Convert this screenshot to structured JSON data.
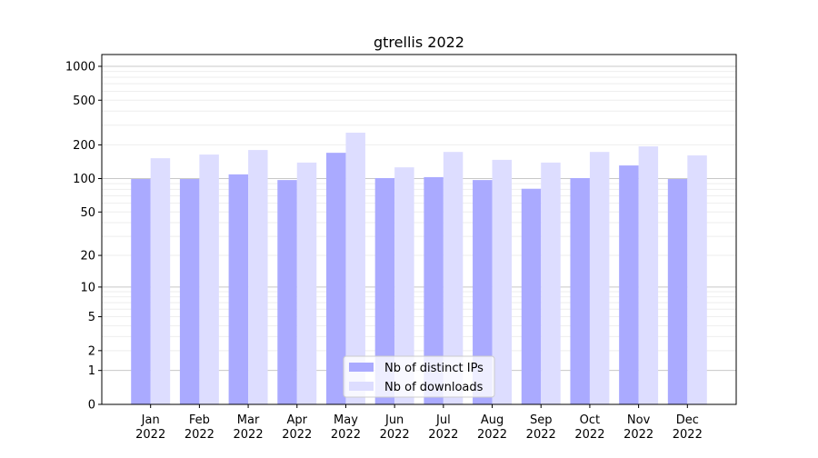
{
  "chart_data": {
    "type": "bar",
    "title": "gtrellis 2022",
    "xlabel": "",
    "ylabel": "",
    "yscale": "log10(1+y)",
    "ylim": [
      0,
      1273
    ],
    "y_ticks": [
      0,
      1,
      2,
      5,
      10,
      20,
      50,
      100,
      200,
      500,
      1000
    ],
    "y_tick_labels": [
      "0",
      "1",
      "2",
      "5",
      "10",
      "20",
      "50",
      "100",
      "200",
      "500",
      "1000"
    ],
    "categories": [
      "Jan\n2022",
      "Feb\n2022",
      "Mar\n2022",
      "Apr\n2022",
      "May\n2022",
      "Jun\n2022",
      "Jul\n2022",
      "Aug\n2022",
      "Sep\n2022",
      "Oct\n2022",
      "Nov\n2022",
      "Dec\n2022"
    ],
    "series": [
      {
        "name": "Nb of distinct IPs",
        "color": "#aaaaff",
        "values": [
          99,
          99,
          109,
          97,
          170,
          101,
          103,
          97,
          81,
          101,
          131,
          99
        ]
      },
      {
        "name": "Nb of downloads",
        "color": "#ddddff",
        "values": [
          152,
          164,
          180,
          139,
          257,
          126,
          173,
          147,
          139,
          173,
          194,
          161
        ]
      }
    ],
    "legend": "bottom-center",
    "grid": true
  }
}
